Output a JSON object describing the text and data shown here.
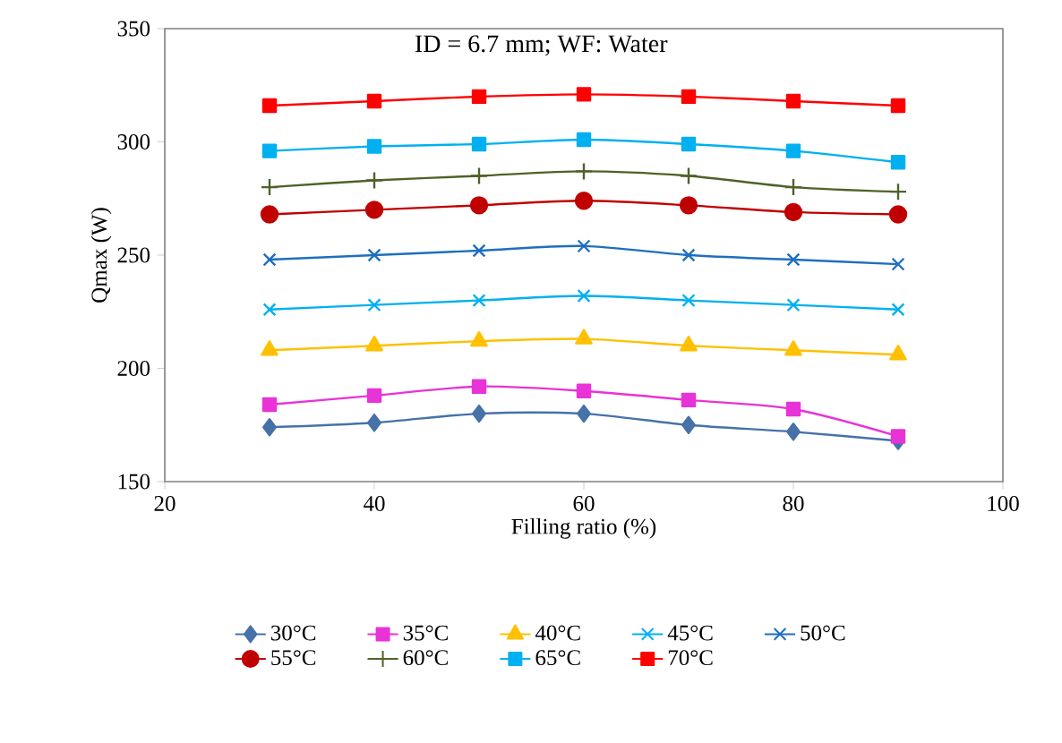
{
  "chart_data": {
    "type": "line",
    "xlabel": "Filling ratio (%)",
    "ylabel": "Qmax (W)",
    "annotations": [
      "ID = 6.7 mm; WF: Water"
    ],
    "x": [
      30,
      40,
      50,
      60,
      70,
      80,
      90
    ],
    "xlim": [
      20,
      100
    ],
    "xticks": [
      20,
      40,
      60,
      80,
      100
    ],
    "ylim": [
      150,
      350
    ],
    "yticks": [
      150,
      200,
      250,
      300,
      350
    ],
    "legend": "bottom",
    "grid": false,
    "series": [
      {
        "name": "30°C",
        "color": "#4672a8",
        "marker": "diamond",
        "values": [
          174,
          176,
          180,
          180,
          175,
          172,
          168
        ]
      },
      {
        "name": "35°C",
        "color": "#e833d6",
        "marker": "square",
        "values": [
          184,
          188,
          192,
          190,
          186,
          182,
          170
        ]
      },
      {
        "name": "40°C",
        "color": "#ffc000",
        "marker": "triangle",
        "values": [
          208,
          210,
          212,
          213,
          210,
          208,
          206
        ]
      },
      {
        "name": "45°C",
        "color": "#00b0f0",
        "marker": "cross",
        "values": [
          226,
          228,
          230,
          232,
          230,
          228,
          226
        ]
      },
      {
        "name": "50°C",
        "color": "#1f6fc0",
        "marker": "cross",
        "values": [
          248,
          250,
          252,
          254,
          250,
          248,
          246
        ]
      },
      {
        "name": "55°C",
        "color": "#c00000",
        "marker": "circle",
        "values": [
          268,
          270,
          272,
          274,
          272,
          269,
          268
        ]
      },
      {
        "name": "60°C",
        "color": "#4f6228",
        "marker": "plus",
        "values": [
          280,
          283,
          285,
          287,
          285,
          280,
          278
        ]
      },
      {
        "name": "65°C",
        "color": "#00b0f0",
        "marker": "square",
        "values": [
          296,
          298,
          299,
          301,
          299,
          296,
          291
        ]
      },
      {
        "name": "70°C",
        "color": "#ff0000",
        "marker": "square",
        "values": [
          316,
          318,
          320,
          321,
          320,
          318,
          316
        ]
      }
    ]
  }
}
